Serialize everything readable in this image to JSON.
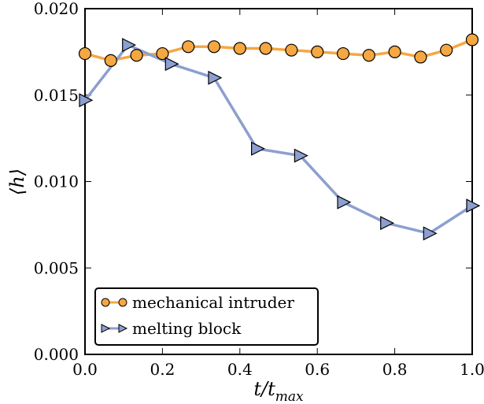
{
  "chart_data": {
    "type": "line",
    "xlabel": "t/t_max",
    "xlabel_main": "t/t",
    "xlabel_sub": "max",
    "ylabel": "⟨h⟩",
    "xlim": [
      0.0,
      1.0
    ],
    "ylim": [
      0.0,
      0.02
    ],
    "xticks": [
      "0.0",
      "0.2",
      "0.4",
      "0.6",
      "0.8",
      "1.0"
    ],
    "xtick_values": [
      0.0,
      0.2,
      0.4,
      0.6,
      0.8,
      1.0
    ],
    "yticks": [
      "0.000",
      "0.005",
      "0.010",
      "0.015",
      "0.020"
    ],
    "ytick_values": [
      0.0,
      0.005,
      0.01,
      0.015,
      0.02
    ],
    "legend_position": "lower-left",
    "series": [
      {
        "name": "mechanical intruder",
        "color": "#f5a742",
        "marker": "circle",
        "x": [
          0.0,
          0.0667,
          0.1333,
          0.2,
          0.2667,
          0.3333,
          0.4,
          0.4667,
          0.5333,
          0.6,
          0.6667,
          0.7333,
          0.8,
          0.8667,
          0.9333,
          1.0
        ],
        "values": [
          0.0174,
          0.017,
          0.0173,
          0.0174,
          0.0178,
          0.0178,
          0.0177,
          0.0177,
          0.0176,
          0.0175,
          0.0174,
          0.0173,
          0.0175,
          0.0172,
          0.0176,
          0.0182
        ]
      },
      {
        "name": "melting block",
        "color": "#8c9fcf",
        "marker": "triangle-right",
        "x": [
          0.0,
          0.1111,
          0.2222,
          0.3333,
          0.4444,
          0.5556,
          0.6667,
          0.7778,
          0.8889,
          1.0
        ],
        "values": [
          0.0147,
          0.0179,
          0.0168,
          0.016,
          0.0119,
          0.0115,
          0.0088,
          0.0076,
          0.007,
          0.0086
        ]
      }
    ]
  }
}
